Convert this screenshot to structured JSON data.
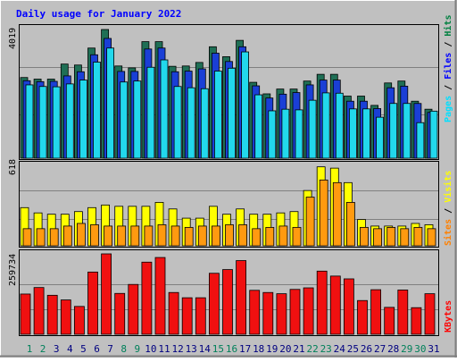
{
  "chart_data": [
    {
      "type": "bar",
      "title": "Daily usage for January 2022",
      "categories": [
        "1",
        "2",
        "3",
        "4",
        "5",
        "6",
        "7",
        "8",
        "9",
        "10",
        "11",
        "12",
        "13",
        "14",
        "15",
        "16",
        "17",
        "18",
        "19",
        "20",
        "21",
        "22",
        "23",
        "24",
        "25",
        "26",
        "27",
        "28",
        "29",
        "30",
        "31"
      ],
      "weekend_days": [
        "1",
        "2",
        "8",
        "9",
        "15",
        "16",
        "22",
        "23",
        "29",
        "30"
      ],
      "ymax_label": "4019",
      "ylim": [
        0,
        4019
      ],
      "grid": true,
      "legend": {
        "position": "right",
        "items": [
          {
            "label": "Hits",
            "color": "#008040"
          },
          {
            "label": "Files",
            "color": "#0000ff"
          },
          {
            "label": "Pages",
            "color": "#00e0ff"
          }
        ],
        "separator": "/"
      },
      "series": [
        {
          "name": "Hits",
          "color": "#1f6f55",
          "values": [
            2520,
            2470,
            2470,
            2940,
            2910,
            3440,
            4019,
            2880,
            2820,
            3640,
            3640,
            2870,
            2880,
            2990,
            3480,
            3170,
            3680,
            2370,
            2010,
            2160,
            2160,
            2410,
            2620,
            2620,
            1940,
            1940,
            1650,
            2350,
            2410,
            1780,
            1530
          ]
        },
        {
          "name": "Files",
          "color": "#1a3fd6",
          "values": [
            2420,
            2390,
            2400,
            2570,
            2700,
            3230,
            3740,
            2710,
            2710,
            3410,
            3440,
            2700,
            2720,
            2790,
            3280,
            3020,
            3480,
            2260,
            1880,
            2000,
            2050,
            2290,
            2440,
            2440,
            1780,
            1780,
            1550,
            2200,
            2250,
            1710,
            1430
          ]
        },
        {
          "name": "Pages",
          "color": "#22d8ec",
          "values": [
            2290,
            2240,
            2230,
            2320,
            2440,
            3000,
            3440,
            2380,
            2410,
            2840,
            3070,
            2240,
            2200,
            2170,
            2720,
            2810,
            3320,
            1980,
            1480,
            1530,
            1510,
            1810,
            2040,
            2030,
            1540,
            1540,
            1280,
            1710,
            1710,
            1110,
            1470
          ]
        }
      ]
    },
    {
      "type": "bar",
      "ymax_label": "618",
      "ylim": [
        0,
        618
      ],
      "grid": true,
      "legend": {
        "position": "right",
        "items": [
          {
            "label": "Visits",
            "color": "#ffff00"
          },
          {
            "label": "Sites",
            "color": "#ff8000"
          }
        ],
        "separator": "/"
      },
      "series": [
        {
          "name": "Visits",
          "color": "#ffff00",
          "values": [
            290,
            250,
            240,
            240,
            260,
            290,
            310,
            300,
            300,
            300,
            330,
            280,
            210,
            210,
            300,
            240,
            280,
            240,
            240,
            250,
            260,
            420,
            600,
            590,
            480,
            200,
            150,
            150,
            150,
            170,
            160
          ]
        },
        {
          "name": "Sites",
          "color": "#ff9a10",
          "values": [
            130,
            130,
            130,
            150,
            170,
            160,
            150,
            150,
            150,
            150,
            160,
            150,
            140,
            150,
            150,
            160,
            160,
            130,
            140,
            150,
            140,
            370,
            500,
            480,
            330,
            140,
            130,
            140,
            130,
            140,
            130
          ]
        }
      ]
    },
    {
      "type": "bar",
      "ymax_label": "259734",
      "ylim": [
        0,
        259734
      ],
      "grid": true,
      "legend": {
        "position": "right",
        "items": [
          {
            "label": "KBytes",
            "color": "#ff0000"
          }
        ]
      },
      "series": [
        {
          "name": "KBytes",
          "color": "#f01010",
          "values": [
            130000,
            151000,
            126000,
            111000,
            90000,
            201000,
            259734,
            132000,
            161000,
            233000,
            248000,
            135000,
            118000,
            118000,
            197000,
            209000,
            238000,
            142000,
            135000,
            131000,
            145000,
            150000,
            204000,
            188000,
            179000,
            109000,
            144000,
            87000,
            143000,
            86000,
            131000
          ]
        }
      ]
    }
  ]
}
